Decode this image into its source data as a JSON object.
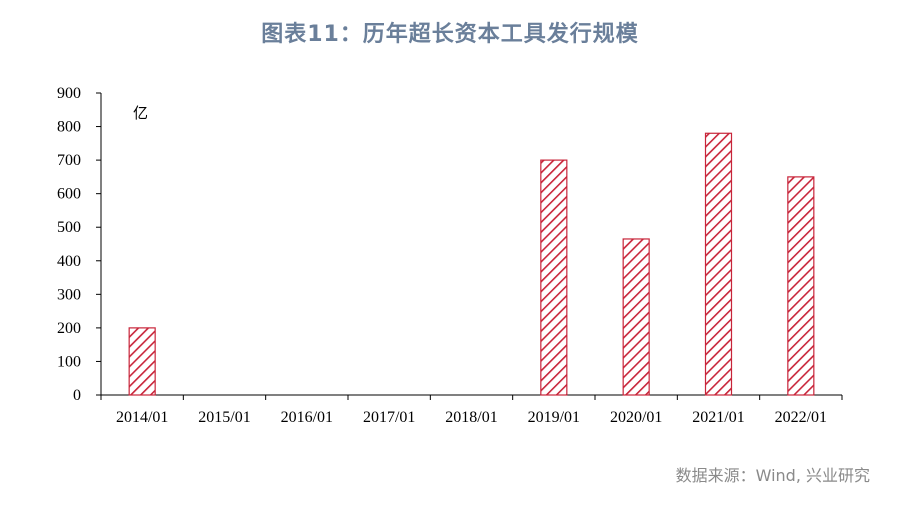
{
  "title": "图表11：历年超长资本工具发行规模",
  "source": "数据来源：Wind, 兴业研究",
  "colors": {
    "bar": "#c8253a",
    "title": "#6a7f9a",
    "axis": "#000000",
    "source": "#8a8a8a"
  },
  "chart_data": {
    "type": "bar",
    "title": "图表11：历年超长资本工具发行规模",
    "unit_label": "亿",
    "categories": [
      "2014/01",
      "2015/01",
      "2016/01",
      "2017/01",
      "2018/01",
      "2019/01",
      "2020/01",
      "2021/01",
      "2022/01"
    ],
    "values": [
      200,
      0,
      0,
      0,
      0,
      700,
      465,
      780,
      650
    ],
    "y_ticks": [
      0,
      100,
      200,
      300,
      400,
      500,
      600,
      700,
      800,
      900
    ],
    "ylim": [
      0,
      900
    ],
    "grid": false,
    "bar_fill": "red diagonal hatch"
  }
}
